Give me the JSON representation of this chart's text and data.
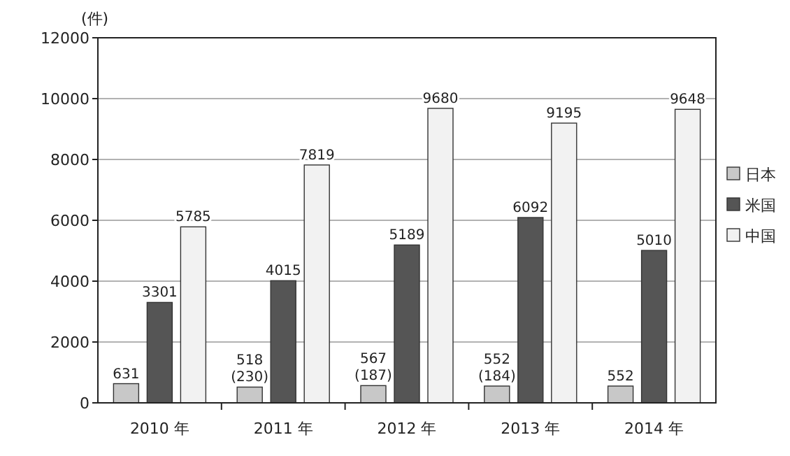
{
  "chart_data": {
    "type": "bar",
    "ylabel": "(件)",
    "categories": [
      "2010 年",
      "2011 年",
      "2012 年",
      "2013 年",
      "2014 年"
    ],
    "ylim": [
      0,
      12000
    ],
    "yticks": [
      0,
      2000,
      4000,
      6000,
      8000,
      10000,
      12000
    ],
    "grid": "y",
    "legend": "right",
    "series": [
      {
        "name": "日本",
        "color": "#c8c8c8",
        "values": [
          631,
          518,
          567,
          552,
          552
        ],
        "value_labels": [
          "631",
          "518\n(230)",
          "567\n(187)",
          "552\n(184)",
          "552"
        ]
      },
      {
        "name": "米国",
        "color": "#555555",
        "values": [
          3301,
          4015,
          5189,
          6092,
          5010
        ],
        "value_labels": [
          "3301",
          "4015",
          "5189",
          "6092",
          "5010"
        ]
      },
      {
        "name": "中国",
        "color": "#f2f2f2",
        "values": [
          5785,
          7819,
          9680,
          9195,
          9648
        ],
        "value_labels": [
          "5785",
          "7819",
          "9680",
          "9195",
          "9648"
        ]
      }
    ]
  }
}
